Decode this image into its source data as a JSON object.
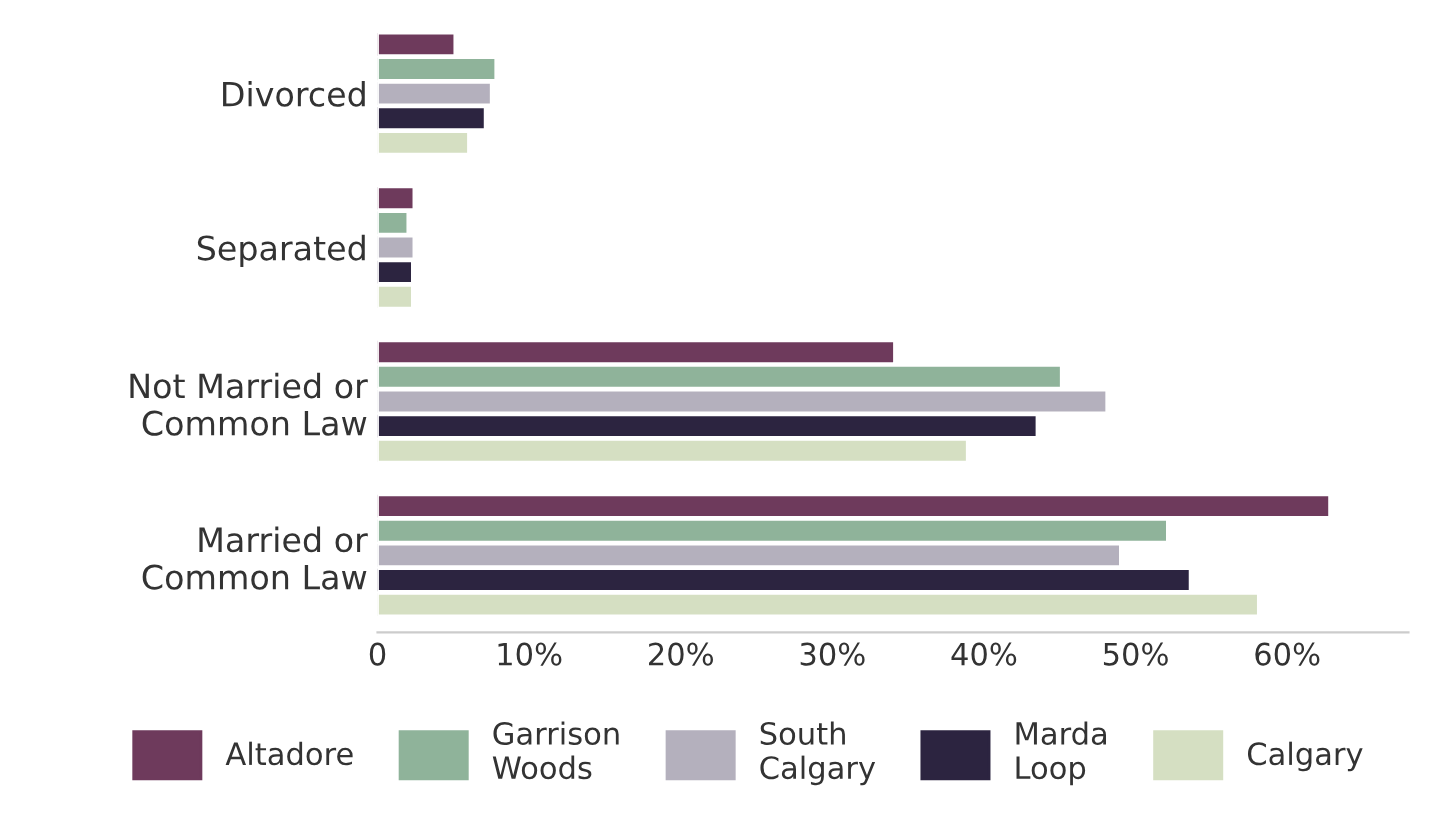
{
  "chart_data": {
    "type": "bar",
    "orientation": "horizontal",
    "categories": [
      "Divorced",
      "Separated",
      "Not Married or\nCommon Law",
      "Married or\nCommon Law"
    ],
    "series": [
      {
        "name": "Altadore",
        "color": "#6e3a5c",
        "values": [
          5.1,
          2.4,
          34.1,
          62.8
        ]
      },
      {
        "name": "Garrison\nWoods",
        "color": "#8fb39a",
        "values": [
          7.8,
          2.0,
          45.1,
          52.1
        ]
      },
      {
        "name": "South\nCalgary",
        "color": "#b4b0bd",
        "values": [
          7.5,
          2.4,
          48.1,
          49.0
        ]
      },
      {
        "name": "Marda\nLoop",
        "color": "#2c2440",
        "values": [
          7.1,
          2.3,
          43.5,
          53.6
        ]
      },
      {
        "name": "Calgary",
        "color": "#d5dfc2",
        "values": [
          6.0,
          2.3,
          38.9,
          58.1
        ]
      }
    ],
    "xlim": [
      0,
      68
    ],
    "xticks": [
      0,
      {
        "value": 10,
        "label": "10%"
      },
      {
        "value": 20,
        "label": "20%"
      },
      {
        "value": 30,
        "label": "30%"
      },
      {
        "value": 40,
        "label": "40%"
      },
      {
        "value": 50,
        "label": "50%"
      },
      {
        "value": 60,
        "label": "60%"
      }
    ],
    "grid": false,
    "legend": "bottom"
  }
}
